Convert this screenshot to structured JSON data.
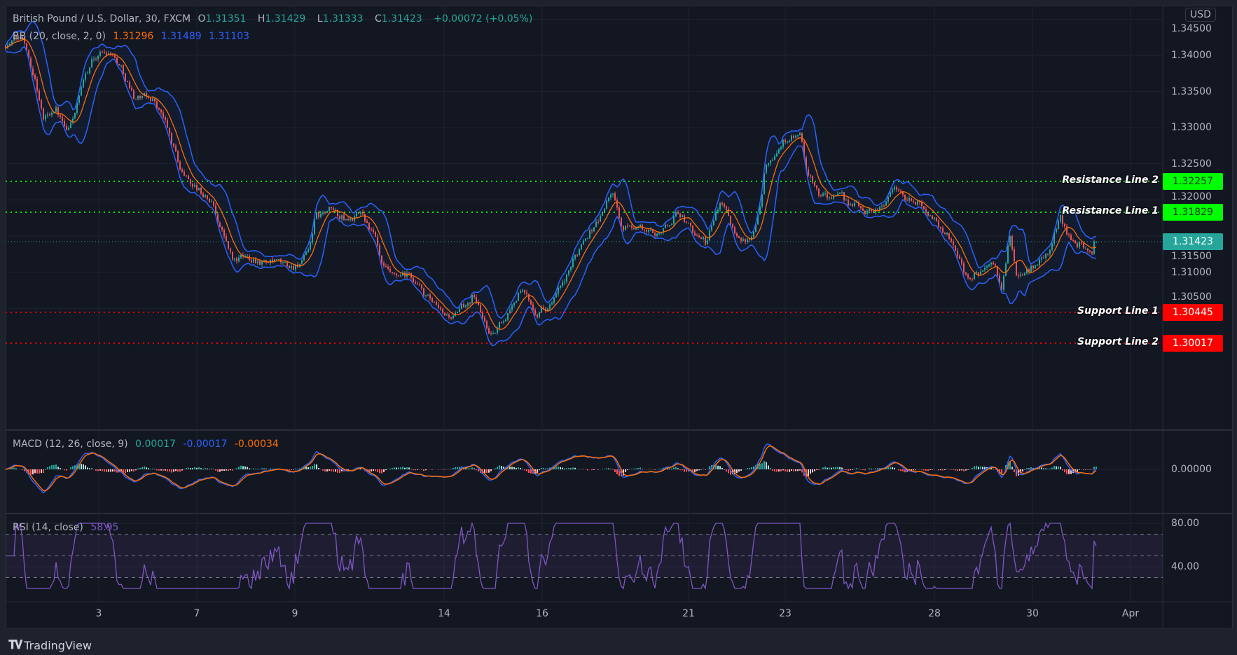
{
  "header": {
    "symbol": "British Pound / U.S. Dollar, 30, FXCM",
    "o_label": "O",
    "o": "1.31351",
    "h_label": "H",
    "h": "1.31429",
    "l_label": "L",
    "l": "1.31333",
    "c_label": "C",
    "c": "1.31423",
    "change": "+0.00072 (+0.05%)"
  },
  "bb": {
    "label": "BB (20, close, 2, 0)",
    "basis": "1.31296",
    "upper": "1.31489",
    "lower": "1.31103"
  },
  "macd": {
    "label": "MACD (12, 26, close, 9)",
    "hist": "0.00017",
    "macd": "-0.00017",
    "signal": "-0.00034",
    "axis_label": "0.00000"
  },
  "rsi": {
    "label": "RSI (14, close)",
    "value": "58.95",
    "axis_labels": [
      "80.00",
      "40.00"
    ]
  },
  "currency": "USD",
  "last_price": "1.31423",
  "price_axis": [
    "1.34500",
    "1.34000",
    "1.33500",
    "1.33000",
    "1.32500",
    "1.32000",
    "1.31500",
    "1.31000",
    "1.30500"
  ],
  "lines": [
    {
      "label": "Resistance Line 2",
      "price": "1.32257",
      "color": "#00ff00"
    },
    {
      "label": "Resistance Line 1",
      "price": "1.31829",
      "color": "#00ff00"
    },
    {
      "label": "Support Line 1",
      "price": "1.30445",
      "color": "#ff0000"
    },
    {
      "label": "Support Line 2",
      "price": "1.30017",
      "color": "#ff0000"
    }
  ],
  "time_axis": [
    {
      "label": "3",
      "bar": 133
    },
    {
      "label": "7",
      "bar": 273
    },
    {
      "label": "9",
      "bar": 413
    },
    {
      "label": "14",
      "bar": 626
    },
    {
      "label": "16",
      "bar": 766
    },
    {
      "label": "21",
      "bar": 975
    },
    {
      "label": "23",
      "bar": 1113
    },
    {
      "label": "28",
      "bar": 1326
    },
    {
      "label": "30",
      "bar": 1466
    },
    {
      "label": "Apr",
      "bar": 1606
    }
  ],
  "footer": {
    "brand": "TradingView"
  },
  "colors": {
    "up": "#26a69a",
    "down": "#ef5350",
    "bb_band": "#2962ff",
    "bb_basis": "#ff6d00",
    "rsi": "#7e57c2",
    "macd": "#2962ff",
    "signal": "#ff6d00"
  },
  "chart_data": {
    "type": "candlestick",
    "title": "British Pound / U.S. Dollar, 30, FXCM",
    "ylim": [
      1.2985,
      1.3475
    ],
    "close_path": [
      [
        3,
        1.3416
      ],
      [
        26,
        1.3425
      ],
      [
        43,
        1.3366
      ],
      [
        54,
        1.3312
      ],
      [
        71,
        1.333
      ],
      [
        88,
        1.3289
      ],
      [
        105,
        1.334
      ],
      [
        121,
        1.3389
      ],
      [
        133,
        1.3403
      ],
      [
        150,
        1.3407
      ],
      [
        167,
        1.338
      ],
      [
        183,
        1.3344
      ],
      [
        212,
        1.3339
      ],
      [
        228,
        1.3307
      ],
      [
        251,
        1.3239
      ],
      [
        274,
        1.3216
      ],
      [
        296,
        1.3194
      ],
      [
        313,
        1.3148
      ],
      [
        324,
        1.3116
      ],
      [
        352,
        1.3121
      ],
      [
        380,
        1.3112
      ],
      [
        409,
        1.3107
      ],
      [
        431,
        1.3121
      ],
      [
        442,
        1.3175
      ],
      [
        465,
        1.3185
      ],
      [
        487,
        1.3171
      ],
      [
        510,
        1.318
      ],
      [
        527,
        1.3148
      ],
      [
        538,
        1.3103
      ],
      [
        555,
        1.3089
      ],
      [
        578,
        1.3094
      ],
      [
        600,
        1.3066
      ],
      [
        623,
        1.3039
      ],
      [
        645,
        1.3039
      ],
      [
        668,
        1.3071
      ],
      [
        684,
        1.303
      ],
      [
        696,
        1.3012
      ],
      [
        713,
        1.3039
      ],
      [
        735,
        1.3075
      ],
      [
        758,
        1.3048
      ],
      [
        780,
        1.3057
      ],
      [
        803,
        1.3094
      ],
      [
        825,
        1.3148
      ],
      [
        848,
        1.3175
      ],
      [
        865,
        1.3212
      ],
      [
        882,
        1.3157
      ],
      [
        898,
        1.3166
      ],
      [
        921,
        1.3153
      ],
      [
        943,
        1.3162
      ],
      [
        960,
        1.3184
      ],
      [
        977,
        1.3162
      ],
      [
        1000,
        1.3139
      ],
      [
        1022,
        1.3203
      ],
      [
        1039,
        1.3162
      ],
      [
        1062,
        1.3139
      ],
      [
        1079,
        1.3203
      ],
      [
        1084,
        1.3257
      ],
      [
        1101,
        1.3271
      ],
      [
        1118,
        1.3289
      ],
      [
        1135,
        1.3285
      ],
      [
        1146,
        1.323
      ],
      [
        1163,
        1.3207
      ],
      [
        1186,
        1.3203
      ],
      [
        1208,
        1.3194
      ],
      [
        1231,
        1.3185
      ],
      [
        1253,
        1.3194
      ],
      [
        1270,
        1.3221
      ],
      [
        1287,
        1.3198
      ],
      [
        1309,
        1.3194
      ],
      [
        1332,
        1.3166
      ],
      [
        1354,
        1.3139
      ],
      [
        1371,
        1.3094
      ],
      [
        1394,
        1.3103
      ],
      [
        1411,
        1.3107
      ],
      [
        1422,
        1.3075
      ],
      [
        1433,
        1.3148
      ],
      [
        1444,
        1.3094
      ],
      [
        1467,
        1.3107
      ],
      [
        1490,
        1.313
      ],
      [
        1506,
        1.318
      ],
      [
        1518,
        1.3148
      ],
      [
        1535,
        1.3139
      ],
      [
        1552,
        1.3116
      ],
      [
        1557,
        1.3142
      ]
    ],
    "last_close": 1.31423
  }
}
